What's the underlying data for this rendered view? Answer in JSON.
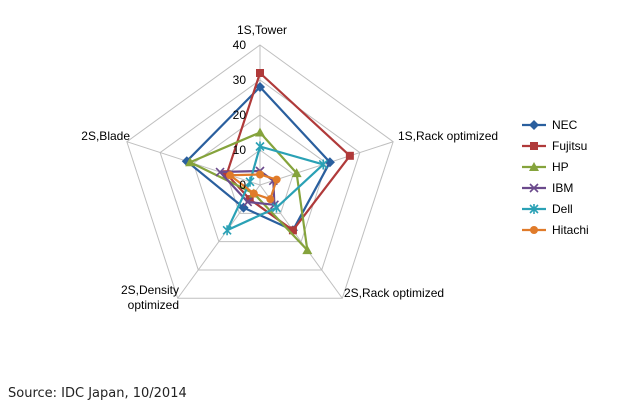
{
  "chart_data": {
    "type": "radar",
    "categories": [
      "1S,Tower",
      "1S,Rack optimized",
      "2S,Rack optimized",
      "2S,Density\noptimized",
      "2S,Blade"
    ],
    "rmax": 40,
    "ticks": [
      0,
      10,
      20,
      30,
      40
    ],
    "grid": true,
    "legend_position": "right",
    "series": [
      {
        "name": "NEC",
        "color": "#2a5f9e",
        "marker": "diamond",
        "values": [
          28,
          21,
          16,
          8,
          22
        ]
      },
      {
        "name": "Fujitsu",
        "color": "#b03a3a",
        "marker": "square",
        "values": [
          32,
          27,
          16,
          5,
          10
        ]
      },
      {
        "name": "HP",
        "color": "#85a33c",
        "marker": "triangle",
        "values": [
          15,
          11,
          23,
          3,
          21
        ]
      },
      {
        "name": "IBM",
        "color": "#6b4a8c",
        "marker": "x",
        "values": [
          4,
          4,
          7,
          6,
          12
        ]
      },
      {
        "name": "Dell",
        "color": "#2aa1b5",
        "marker": "asterisk",
        "values": [
          11,
          19,
          8,
          16,
          3
        ]
      },
      {
        "name": "Hitachi",
        "color": "#e07b2a",
        "marker": "circle",
        "values": [
          3,
          5,
          5,
          3,
          9
        ]
      }
    ]
  },
  "source": "Source: IDC Japan, 10/2014"
}
